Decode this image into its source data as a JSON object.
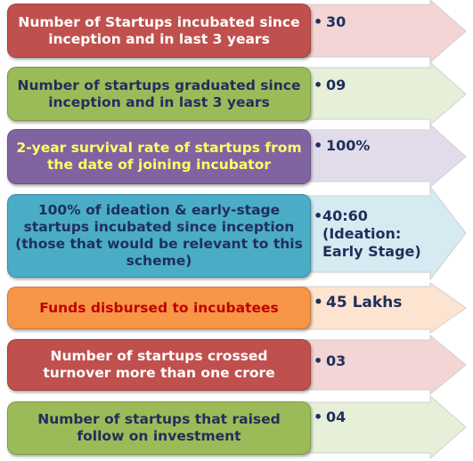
{
  "rows": [
    {
      "label": "Number of Startups incubated since inception and in last 3 years",
      "value": "30",
      "box_color": "#c0504d",
      "text_color": "#ffffff",
      "arrow_color": "#f2d5d4"
    },
    {
      "label": "Number of startups graduated since inception and in last 3 years",
      "value": "09",
      "box_color": "#9bbb59",
      "text_color": "#1f2f5c",
      "arrow_color": "#e6efd8"
    },
    {
      "label": "2-year survival rate of startups from the date of joining incubator",
      "value": "100%",
      "box_color": "#8064a2",
      "text_color": "#ffff66",
      "arrow_color": "#e2dcea"
    },
    {
      "label": "100% of ideation & early-stage startups incubated since inception (those that would be relevant to this scheme)",
      "value": "40:60\n(Ideation:\nEarly Stage)",
      "box_color": "#4bacc6",
      "text_color": "#1f2f5c",
      "arrow_color": "#d5eaf1"
    },
    {
      "label": "Funds disbursed to incubatees",
      "value": "45 Lakhs",
      "box_color": "#f79646",
      "text_color": "#c00000",
      "arrow_color": "#fde4d0"
    },
    {
      "label": "Number of startups crossed turnover more than one crore",
      "value": "03",
      "box_color": "#c0504d",
      "text_color": "#ffffff",
      "arrow_color": "#f2d5d4"
    },
    {
      "label": "Number of startups that raised follow on investment",
      "value": "04",
      "box_color": "#9bbb59",
      "text_color": "#1f2f5c",
      "arrow_color": "#e6efd8"
    }
  ]
}
